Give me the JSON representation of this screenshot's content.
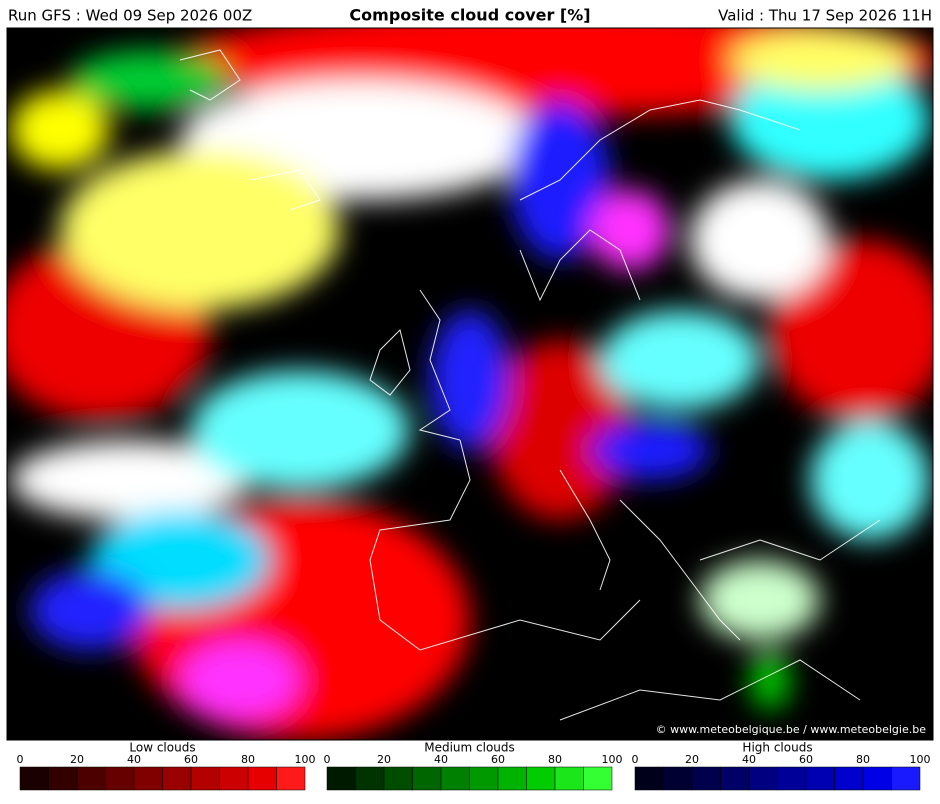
{
  "header": {
    "run": "Run GFS : Wed 09 Sep 2026 00Z",
    "title": "Composite cloud cover [%]",
    "valid": "Valid : Thu 17 Sep 2026 11H"
  },
  "map": {
    "copyright": "© www.meteobelgique.be / www.meteobelgie.be"
  },
  "legends": [
    {
      "title": "Low clouds",
      "ticks": [
        0,
        20,
        40,
        60,
        80,
        100
      ],
      "colors": [
        "#1a0000",
        "#330000",
        "#4d0000",
        "#660000",
        "#800000",
        "#990000",
        "#b30000",
        "#cc0000",
        "#e60000",
        "#ff1a1a"
      ]
    },
    {
      "title": "Medium clouds",
      "ticks": [
        0,
        20,
        40,
        60,
        80,
        100
      ],
      "colors": [
        "#001a00",
        "#003300",
        "#004d00",
        "#006600",
        "#008000",
        "#009900",
        "#00b300",
        "#00cc00",
        "#1ae61a",
        "#33ff33"
      ]
    },
    {
      "title": "High clouds",
      "ticks": [
        0,
        20,
        40,
        60,
        80,
        100
      ],
      "colors": [
        "#00001a",
        "#000033",
        "#00004d",
        "#000066",
        "#000080",
        "#000099",
        "#0000b3",
        "#0000cc",
        "#0000e6",
        "#1a1aff"
      ]
    }
  ]
}
